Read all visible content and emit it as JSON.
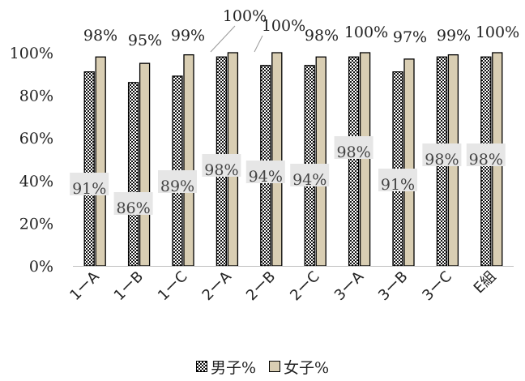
{
  "chart_data": {
    "type": "bar",
    "title": "",
    "xlabel": "",
    "ylabel": "",
    "ylim": [
      0,
      100
    ],
    "y_ticks": [
      "0%",
      "20%",
      "40%",
      "60%",
      "80%",
      "100%"
    ],
    "categories": [
      "1ーA",
      "1ーB",
      "1ーC",
      "2ーA",
      "2ーB",
      "2ーC",
      "3ーA",
      "3ーB",
      "3ーC",
      "E組"
    ],
    "series": [
      {
        "name": "男子%",
        "values": [
          91,
          86,
          89,
          98,
          94,
          94,
          98,
          91,
          98,
          98
        ],
        "labels": [
          "91%",
          "86%",
          "89%",
          "98%",
          "94%",
          "94%",
          "98%",
          "91%",
          "98%",
          "98%"
        ],
        "color": "#ffffff",
        "pattern": "checkered"
      },
      {
        "name": "女子%",
        "values": [
          98,
          95,
          99,
          100,
          100,
          98,
          100,
          97,
          99,
          100
        ],
        "labels": [
          "98%",
          "95%",
          "99%",
          "100%",
          "100%",
          "98%",
          "100%",
          "97%",
          "99%",
          "100%"
        ],
        "color": "#d9ceb3"
      }
    ],
    "grid": false,
    "legend_position": "bottom"
  }
}
